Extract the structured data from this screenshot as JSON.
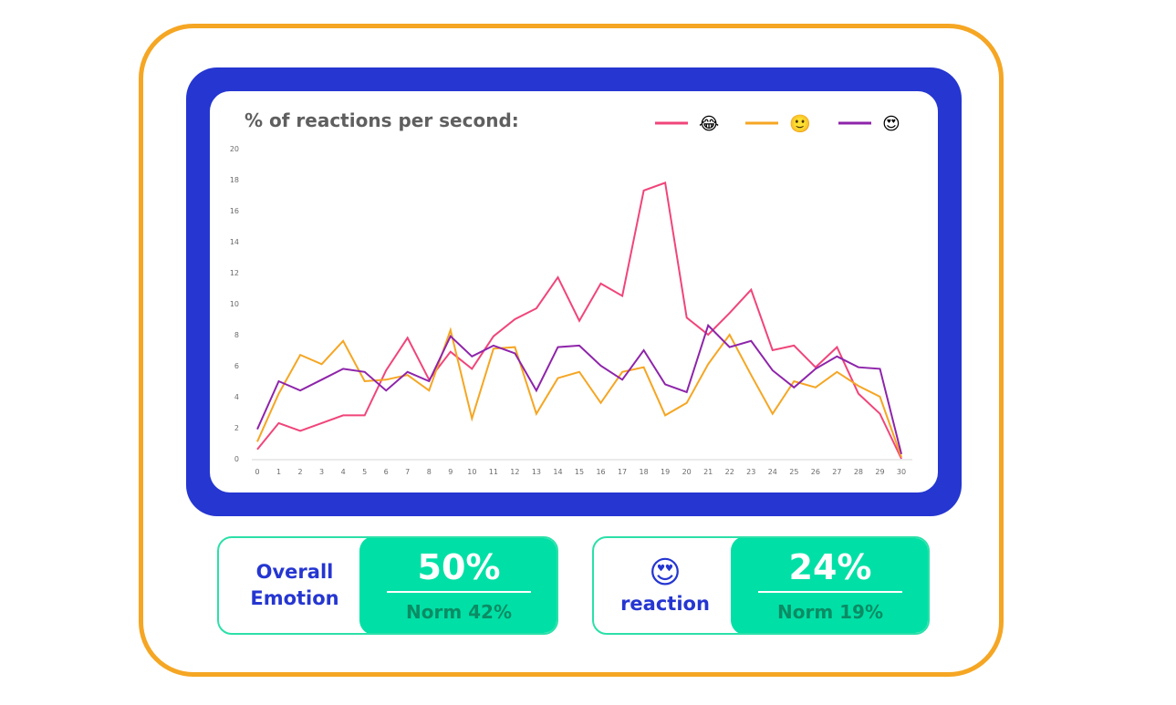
{
  "colors": {
    "frame": "#F5A623",
    "screen": "#2536D1",
    "accent": "#00E0A6",
    "series_joy": "#F0457A",
    "series_smile": "#F5A623",
    "series_love": "#8E24AA"
  },
  "chart_data": {
    "type": "line",
    "title": "% of reactions per second:",
    "xlabel": "",
    "ylabel": "",
    "x": [
      0,
      1,
      2,
      3,
      4,
      5,
      6,
      7,
      8,
      9,
      10,
      11,
      12,
      13,
      14,
      15,
      16,
      17,
      18,
      19,
      20,
      21,
      22,
      23,
      24,
      25,
      26,
      27,
      28,
      29,
      30
    ],
    "xlim": [
      0,
      30
    ],
    "ylim": [
      0,
      20
    ],
    "yticks": [
      0,
      2,
      4,
      6,
      8,
      10,
      12,
      14,
      16,
      18,
      20
    ],
    "grid": false,
    "legend_position": "top-right",
    "series": [
      {
        "name": "😂",
        "color": "#F0457A",
        "values": [
          0.6,
          2.3,
          1.8,
          2.3,
          2.8,
          2.8,
          5.7,
          7.8,
          5.1,
          6.9,
          5.8,
          7.9,
          9.0,
          9.7,
          11.7,
          8.9,
          11.3,
          10.5,
          17.3,
          17.8,
          9.1,
          8.0,
          9.4,
          10.9,
          7.0,
          7.3,
          5.9,
          7.2,
          4.2,
          2.9,
          0.0
        ]
      },
      {
        "name": "🙂",
        "color": "#F5A623",
        "values": [
          1.1,
          4.2,
          6.7,
          6.1,
          7.6,
          5.0,
          5.1,
          5.4,
          4.4,
          8.3,
          2.6,
          7.1,
          7.2,
          2.9,
          5.2,
          5.6,
          3.6,
          5.6,
          5.9,
          2.8,
          3.6,
          6.1,
          8.0,
          5.4,
          2.9,
          5.0,
          4.6,
          5.6,
          4.7,
          4.0,
          0.1
        ]
      },
      {
        "name": "😍",
        "color": "#8E24AA",
        "values": [
          1.9,
          5.0,
          4.4,
          5.1,
          5.8,
          5.6,
          4.4,
          5.6,
          5.0,
          7.9,
          6.6,
          7.3,
          6.8,
          4.4,
          7.2,
          7.3,
          6.0,
          5.1,
          7.0,
          4.8,
          4.3,
          8.6,
          7.2,
          7.6,
          5.7,
          4.6,
          5.8,
          6.6,
          5.9,
          5.8,
          0.3
        ]
      }
    ]
  },
  "cards": [
    {
      "label_line1": "Overall",
      "label_line2": "Emotion",
      "value": "50%",
      "norm": "Norm 42%"
    },
    {
      "icon": "😍",
      "label_line1": "reaction",
      "value": "24%",
      "norm": "Norm 19%"
    }
  ]
}
